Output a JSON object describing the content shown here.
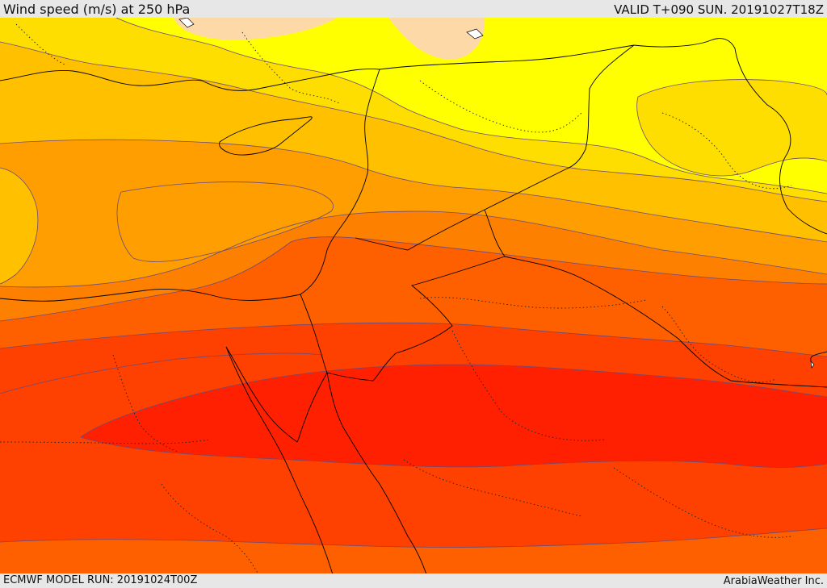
{
  "header": {
    "title": "Wind speed (m/s) at 250 hPa",
    "valid": "VALID T+090 SUN. 20191027T18Z"
  },
  "footer": {
    "model_run": "ECMWF MODEL RUN: 20191024T00Z",
    "credit": "ArabiaWeather Inc."
  },
  "colors": {
    "band_peach": "#fdd9a8",
    "band_yellow": "#ffff00",
    "band_gold": "#fedd00",
    "band_amber": "#ffc000",
    "band_orange_light": "#fe9e00",
    "band_orange": "#fe8000",
    "band_orange_dark": "#fe6000",
    "band_red_orange": "#fe4000",
    "band_red": "#fe2000",
    "contour_line": "#6b4a78",
    "border_line": "#000000"
  }
}
